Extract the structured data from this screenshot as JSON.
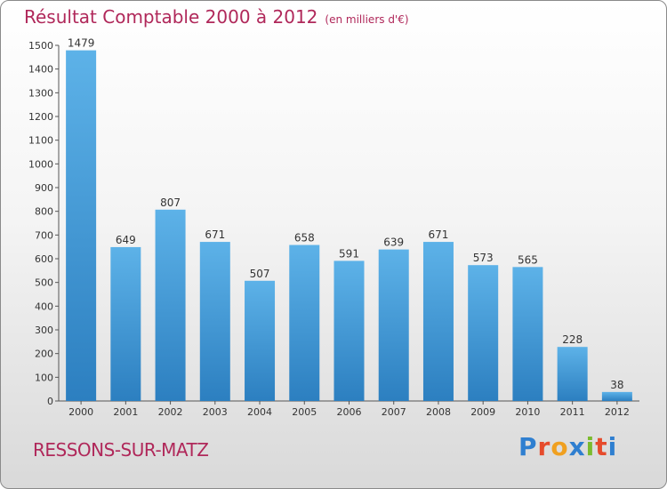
{
  "header": {
    "title": "Résultat Comptable 2000 à 2012",
    "subtitle": "(en milliers d'€)"
  },
  "commune": "RESSONS-SUR-MATZ",
  "logo": {
    "text": "Proxiti",
    "colors": [
      "#2f7fd0",
      "#e64b2c",
      "#f0a020",
      "#2f7fd0",
      "#7bbb2e",
      "#e64b2c",
      "#2f7fd0"
    ]
  },
  "chart_data": {
    "type": "bar",
    "categories": [
      "2000",
      "2001",
      "2002",
      "2003",
      "2004",
      "2005",
      "2006",
      "2007",
      "2008",
      "2009",
      "2010",
      "2011",
      "2012"
    ],
    "values": [
      1479,
      649,
      807,
      671,
      507,
      658,
      591,
      639,
      671,
      573,
      565,
      228,
      38
    ],
    "title": "Résultat Comptable 2000 à 2012",
    "ylim": [
      0,
      1500
    ],
    "yticks": [
      0,
      100,
      200,
      300,
      400,
      500,
      600,
      700,
      800,
      900,
      1000,
      1100,
      1200,
      1300,
      1400,
      1500
    ],
    "grid": false,
    "bar_color_light": "#5db2e8",
    "bar_color_dark": "#2c7fc0"
  }
}
